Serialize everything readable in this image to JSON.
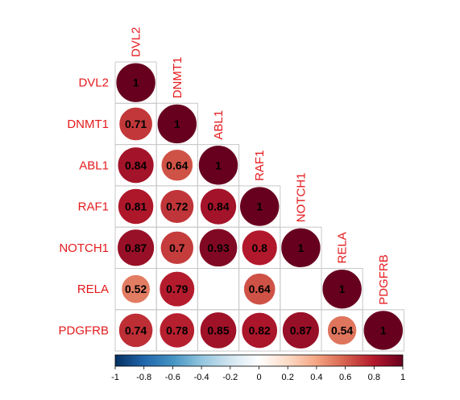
{
  "chart_data": {
    "type": "heatmap",
    "variables": [
      "DVL2",
      "DNMT1",
      "ABL1",
      "RAF1",
      "NOTCH1",
      "RELA",
      "PDGFRB"
    ],
    "lower_triangle": [
      [
        1
      ],
      [
        0.71,
        1
      ],
      [
        0.84,
        0.64,
        1
      ],
      [
        0.81,
        0.72,
        0.84,
        1
      ],
      [
        0.87,
        0.7,
        0.93,
        0.8,
        1
      ],
      [
        0.52,
        0.79,
        null,
        0.64,
        null,
        1
      ],
      [
        0.74,
        0.78,
        0.85,
        0.82,
        0.87,
        0.54,
        1
      ]
    ],
    "cell_labels": [
      [
        "1"
      ],
      [
        "0.71",
        "1"
      ],
      [
        "0.84",
        "0.64",
        "1"
      ],
      [
        "0.81",
        "0.72",
        "0.84",
        "1"
      ],
      [
        "0.87",
        "0.7",
        "0.93",
        "0.8",
        "1"
      ],
      [
        "0.52",
        "0.79",
        "",
        "0.64",
        "",
        "1"
      ],
      [
        "0.74",
        "0.78",
        "0.85",
        "0.82",
        "0.87",
        "0.54",
        "1"
      ]
    ],
    "colorbar": {
      "range": [
        -1,
        1
      ],
      "ticks": [
        "-1",
        "-0.8",
        "-0.6",
        "-0.4",
        "-0.2",
        "0",
        "0.2",
        "0.4",
        "0.6",
        "0.8",
        "1"
      ],
      "tick_values": [
        -1,
        -0.8,
        -0.6,
        -0.4,
        -0.2,
        0,
        0.2,
        0.4,
        0.6,
        0.8,
        1
      ],
      "position": "bottom"
    },
    "colors": {
      "label": "#e41a1c",
      "grid": "#c8c8c8",
      "scale": [
        "#053061",
        "#2166ac",
        "#4393c3",
        "#92c5de",
        "#d1e5f0",
        "#ffffff",
        "#fddbc7",
        "#f4a582",
        "#d6604d",
        "#b2182b",
        "#67001f"
      ]
    }
  }
}
